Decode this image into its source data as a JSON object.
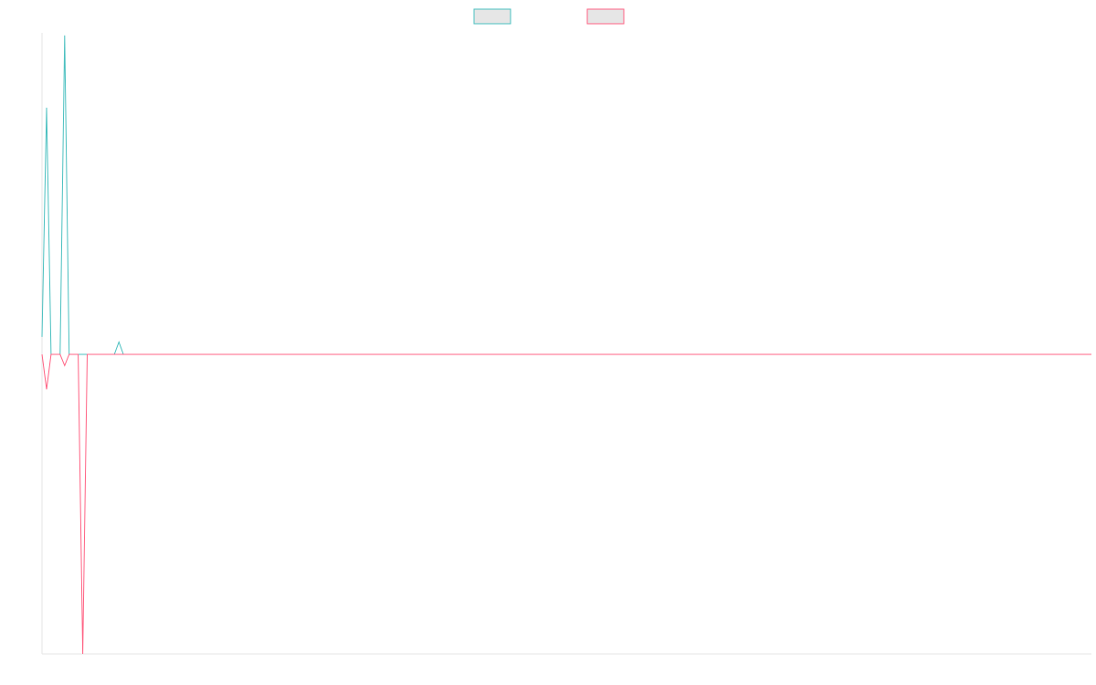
{
  "chart_data": {
    "type": "line",
    "title": "",
    "xlabel": "",
    "ylabel": "",
    "x_count": 233,
    "ylim": [
      -1.2,
      1.2
    ],
    "grid": false,
    "legend_placement": "top-center",
    "colors": {
      "axis": "#e6e6e6",
      "swatch_fill": "#e6e6e6"
    },
    "series": [
      {
        "name": "",
        "color": "#4bc0c0",
        "points": [
          [
            0,
            0.07
          ],
          [
            1,
            0.99
          ],
          [
            2,
            0
          ],
          [
            3,
            0
          ],
          [
            4,
            0
          ],
          [
            5,
            1.28
          ],
          [
            6,
            0
          ],
          [
            7,
            0
          ],
          [
            8,
            0
          ],
          [
            9,
            0
          ],
          [
            10,
            0
          ],
          [
            11,
            0
          ],
          [
            12,
            0
          ],
          [
            13,
            0
          ],
          [
            14,
            0
          ],
          [
            15,
            0
          ],
          [
            16,
            0
          ],
          [
            17,
            0.05
          ],
          [
            18,
            0
          ],
          [
            19,
            0
          ],
          [
            232,
            0
          ]
        ]
      },
      {
        "name": "",
        "color": "#ff6384",
        "points": [
          [
            0,
            0
          ],
          [
            1,
            -0.14
          ],
          [
            2,
            0
          ],
          [
            3,
            0
          ],
          [
            4,
            0
          ],
          [
            5,
            -0.045
          ],
          [
            6,
            0
          ],
          [
            7,
            0
          ],
          [
            8,
            0
          ],
          [
            9,
            -1.2
          ],
          [
            10,
            0
          ],
          [
            11,
            0
          ],
          [
            232,
            0
          ]
        ]
      }
    ]
  }
}
